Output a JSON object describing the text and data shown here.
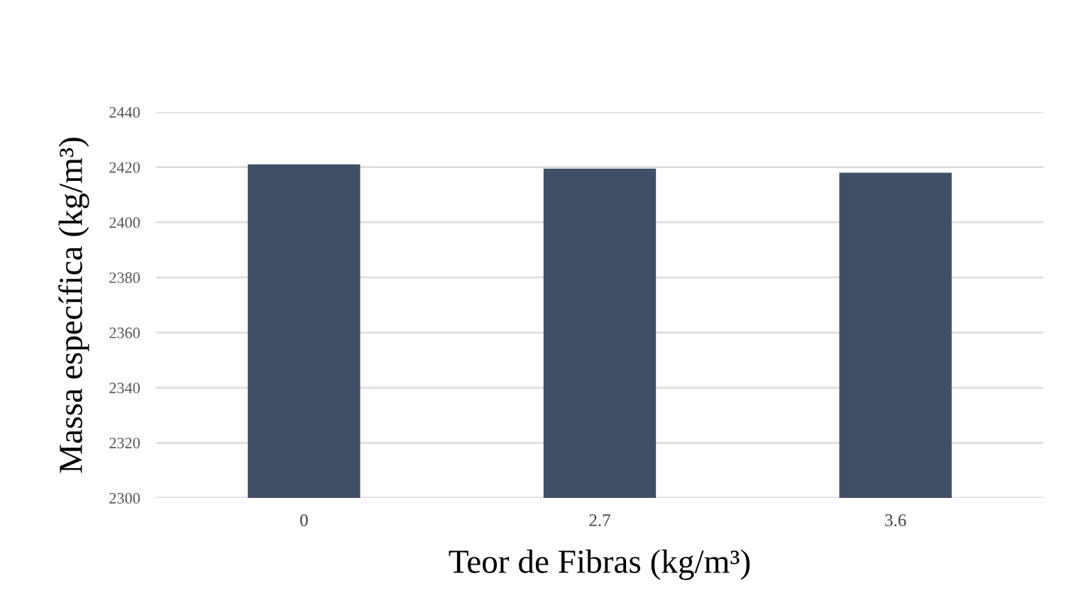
{
  "chart_data": {
    "type": "bar",
    "xlabel": "Teor de Fibras (kg/m³)",
    "ylabel": "Massa específica (kg/m³)",
    "categories": [
      "0",
      "2.7",
      "3.6"
    ],
    "values": [
      2421,
      2419.5,
      2418
    ],
    "color": "#3f4f66",
    "ylim": [
      2300,
      2440
    ],
    "yticks": [
      2300,
      2320,
      2340,
      2360,
      2380,
      2400,
      2420,
      2440
    ],
    "grid": "y"
  }
}
